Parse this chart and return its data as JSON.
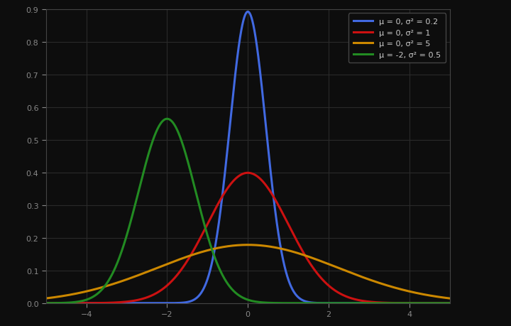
{
  "background_color": "#0d0d0d",
  "plot_bg_color": "#0d0d0d",
  "grid_color": "#2a2a2a",
  "curves": [
    {
      "mu": 0,
      "sigma2": 0.2,
      "color": "#4169e1",
      "label": "μ = 0, σ² = 0.2"
    },
    {
      "mu": 0,
      "sigma2": 1.0,
      "color": "#cc1111",
      "label": "μ = 0, σ² = 1"
    },
    {
      "mu": 0,
      "sigma2": 5.0,
      "color": "#cc8800",
      "label": "μ = 0, σ² = 5"
    },
    {
      "mu": -2,
      "sigma2": 0.5,
      "color": "#228b22",
      "label": "μ = -2, σ² = 0.5"
    }
  ],
  "xlim": [
    -5,
    5
  ],
  "ylim": [
    0,
    0.9
  ],
  "xticks": [
    -4,
    -2,
    0,
    2,
    4
  ],
  "yticks": [
    0.0,
    0.1,
    0.2,
    0.3,
    0.4,
    0.5,
    0.6,
    0.7,
    0.8,
    0.9
  ],
  "tick_color": "#888888",
  "tick_fontsize": 8,
  "legend_fontsize": 8,
  "legend_text_color": "#cccccc",
  "spine_color": "#444444",
  "linewidth": 2.2,
  "figsize": [
    7.2,
    4.6
  ],
  "dpi": 100
}
